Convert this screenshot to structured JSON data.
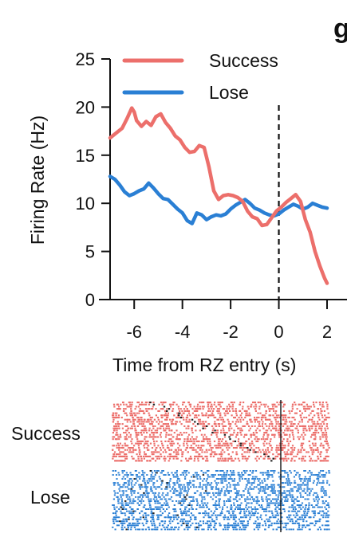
{
  "panel_letter": "g",
  "chart_data": {
    "type": "line",
    "xlabel": "Time from RZ entry (s)",
    "ylabel": "Firing Rate (Hz)",
    "xlim": [
      -7,
      2
    ],
    "ylim": [
      0,
      25
    ],
    "x_ticks": [
      "-6",
      "-4",
      "-2",
      "0",
      "2"
    ],
    "y_ticks": [
      "0",
      "5",
      "10",
      "15",
      "20",
      "25"
    ],
    "event_line_x": 0,
    "legend": {
      "placement": "top-left",
      "entries": [
        "Success",
        "Lose"
      ]
    },
    "series": [
      {
        "name": "Success",
        "color": "#ec6f6b",
        "x": [
          -7.0,
          -6.8,
          -6.5,
          -6.3,
          -6.1,
          -6.0,
          -5.9,
          -5.7,
          -5.5,
          -5.3,
          -5.1,
          -4.9,
          -4.7,
          -4.5,
          -4.3,
          -4.1,
          -3.9,
          -3.7,
          -3.5,
          -3.3,
          -3.1,
          -2.9,
          -2.7,
          -2.5,
          -2.3,
          -2.1,
          -1.9,
          -1.7,
          -1.5,
          -1.3,
          -1.1,
          -0.9,
          -0.7,
          -0.5,
          -0.3,
          -0.1,
          0.1,
          0.3,
          0.5,
          0.7,
          0.9,
          1.1,
          1.3,
          1.5,
          1.7,
          1.9,
          2.0
        ],
        "values": [
          16.8,
          17.2,
          17.8,
          18.8,
          19.9,
          19.5,
          18.6,
          18.0,
          18.5,
          18.1,
          19.0,
          19.3,
          18.4,
          17.8,
          17.0,
          16.6,
          15.8,
          15.3,
          15.4,
          16.0,
          15.8,
          13.8,
          11.3,
          10.4,
          10.8,
          10.9,
          10.8,
          10.6,
          10.2,
          9.2,
          8.6,
          8.4,
          7.7,
          7.8,
          8.5,
          9.2,
          9.6,
          10.1,
          10.5,
          10.9,
          10.2,
          8.3,
          7.0,
          5.0,
          3.5,
          2.2,
          1.7
        ]
      },
      {
        "name": "Lose",
        "color": "#2a7fd4",
        "x": [
          -7.0,
          -6.8,
          -6.6,
          -6.4,
          -6.2,
          -6.0,
          -5.8,
          -5.6,
          -5.4,
          -5.2,
          -5.0,
          -4.8,
          -4.6,
          -4.4,
          -4.2,
          -4.0,
          -3.8,
          -3.6,
          -3.4,
          -3.2,
          -3.0,
          -2.8,
          -2.6,
          -2.4,
          -2.2,
          -2.0,
          -1.8,
          -1.6,
          -1.4,
          -1.2,
          -1.0,
          -0.8,
          -0.6,
          -0.4,
          -0.2,
          0.0,
          0.2,
          0.4,
          0.6,
          0.8,
          1.0,
          1.2,
          1.4,
          1.6,
          1.8,
          2.0
        ],
        "values": [
          12.8,
          12.5,
          11.9,
          11.2,
          10.8,
          11.0,
          11.3,
          11.5,
          12.1,
          11.6,
          11.0,
          10.5,
          10.4,
          9.9,
          9.4,
          9.0,
          8.2,
          7.9,
          9.0,
          8.8,
          8.3,
          8.6,
          8.8,
          8.7,
          8.9,
          9.4,
          9.8,
          10.1,
          10.4,
          10.0,
          9.5,
          9.3,
          9.0,
          8.8,
          8.7,
          8.9,
          9.3,
          9.6,
          9.9,
          9.7,
          9.4,
          9.6,
          10.0,
          9.8,
          9.6,
          9.5
        ]
      }
    ]
  },
  "raster": {
    "labels": [
      "Success",
      "Lose"
    ],
    "colors": [
      "#ec6f6b",
      "#2a7fd4"
    ],
    "trials": [
      28,
      30
    ],
    "event_line_color": "#111111"
  }
}
